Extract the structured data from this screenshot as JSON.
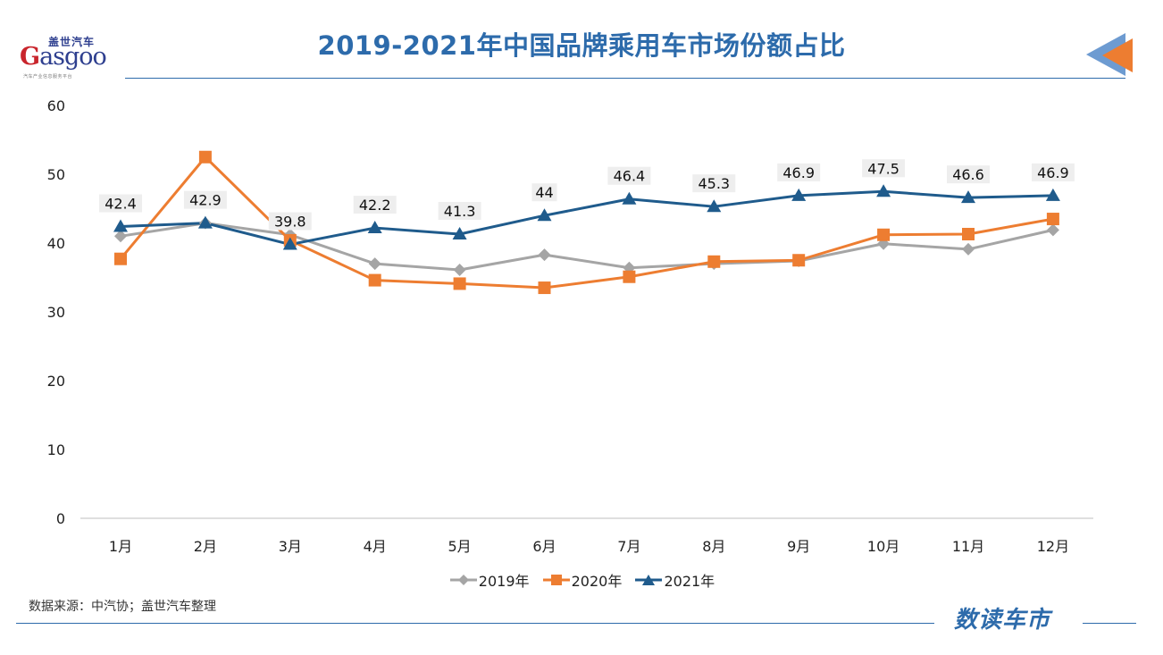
{
  "header": {
    "logo_cn": "盖世汽车",
    "logo_word": "asgoo",
    "logo_g": "G",
    "logo_tagline": "汽车产业信息服务平台",
    "title": "2019-2021年中国品牌乘用车市场份额占比"
  },
  "footer": {
    "source": "数据来源：中汽协；盖世汽车整理",
    "brand": "数读车市"
  },
  "colors": {
    "title": "#2d6bab",
    "series_2019": "#a5a5a5",
    "series_2020": "#ed7d31",
    "series_2021": "#1f5b8c"
  },
  "chart_data": {
    "type": "line",
    "title": "2019-2021年中国品牌乘用车市场份额占比",
    "xlabel": "",
    "ylabel": "",
    "categories": [
      "1月",
      "2月",
      "3月",
      "4月",
      "5月",
      "6月",
      "7月",
      "8月",
      "9月",
      "10月",
      "11月",
      "12月"
    ],
    "ylim": [
      0,
      60
    ],
    "yticks": [
      0,
      10,
      20,
      30,
      40,
      50,
      60
    ],
    "grid": false,
    "legend": "bottom",
    "series": [
      {
        "name": "2019年",
        "marker": "diamond",
        "color": "#a5a5a5",
        "values": [
          41.0,
          42.9,
          41.2,
          37.0,
          36.1,
          38.3,
          36.4,
          37.0,
          37.4,
          39.9,
          39.1,
          41.9
        ],
        "labels": []
      },
      {
        "name": "2020年",
        "marker": "square",
        "color": "#ed7d31",
        "values": [
          37.7,
          52.5,
          40.4,
          34.6,
          34.1,
          33.5,
          35.1,
          37.3,
          37.5,
          41.2,
          41.3,
          43.5
        ],
        "labels": []
      },
      {
        "name": "2021年",
        "marker": "triangle",
        "color": "#1f5b8c",
        "values": [
          42.4,
          42.9,
          39.8,
          42.2,
          41.3,
          44,
          46.4,
          45.3,
          46.9,
          47.5,
          46.6,
          46.9
        ],
        "labels": [
          "42.4",
          "42.9",
          "39.8",
          "42.2",
          "41.3",
          "44",
          "46.4",
          "45.3",
          "46.9",
          "47.5",
          "46.6",
          "46.9"
        ]
      }
    ]
  }
}
